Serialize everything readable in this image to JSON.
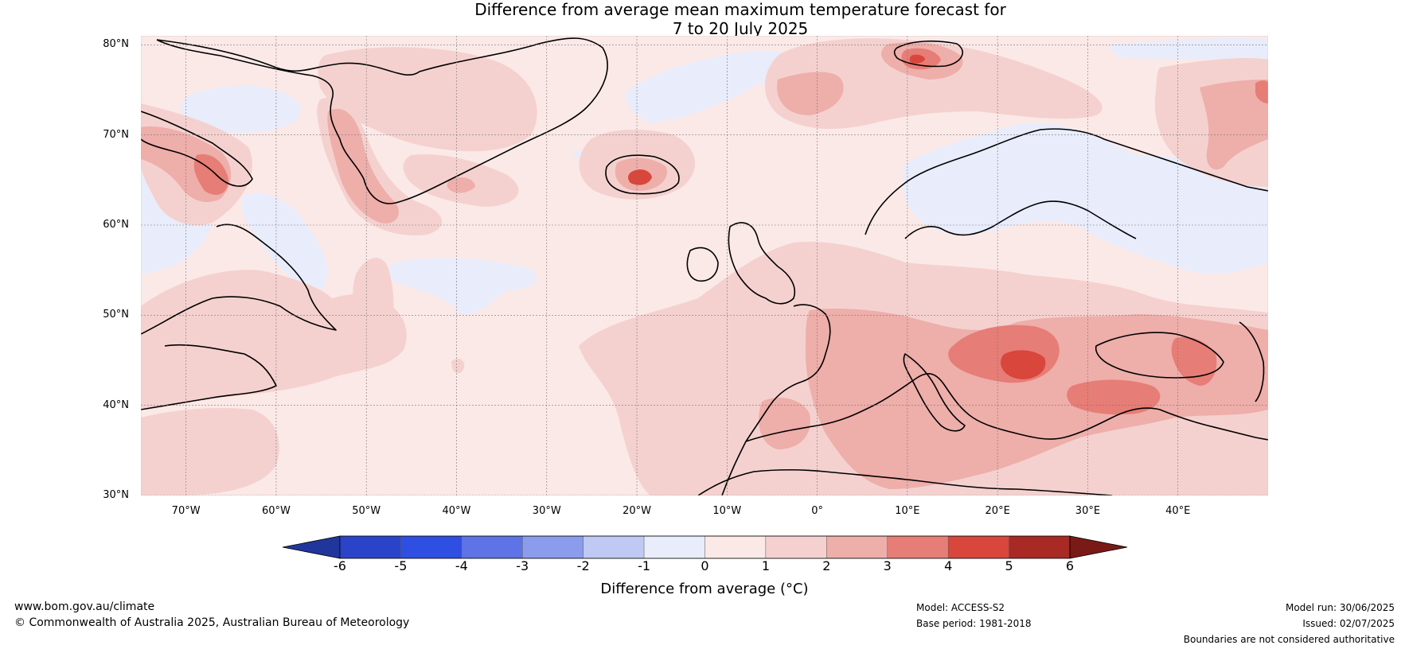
{
  "title": {
    "line1": "Difference from average mean maximum temperature forecast for",
    "line2": "7 to 20 July 2025"
  },
  "map": {
    "lat_labels": [
      "80°N",
      "70°N",
      "60°N",
      "50°N",
      "40°N",
      "30°N"
    ],
    "lon_labels": [
      "70°W",
      "60°W",
      "50°W",
      "40°W",
      "30°W",
      "20°W",
      "10°W",
      "0°",
      "10°E",
      "20°E",
      "30°E",
      "40°E"
    ],
    "lat_values": [
      80,
      70,
      60,
      50,
      40,
      30
    ],
    "lon_values": [
      -70,
      -60,
      -50,
      -40,
      -30,
      -20,
      -10,
      0,
      10,
      20,
      30,
      40
    ],
    "extent": {
      "lon_min": -75,
      "lon_max": 50,
      "lat_min": 30,
      "lat_max": 81
    },
    "background_color": "#fbe9e7"
  },
  "colorbar": {
    "ticks": [
      "-6",
      "-5",
      "-4",
      "-3",
      "-2",
      "-1",
      "0",
      "1",
      "2",
      "3",
      "4",
      "5",
      "6"
    ],
    "colors": [
      "#21369d",
      "#2b43c9",
      "#2f4fe2",
      "#5d73e6",
      "#8a9ceb",
      "#c0c9f3",
      "#e9ecfb",
      "#fbe9e7",
      "#f4d1cf",
      "#eeaeaa",
      "#e67d76",
      "#d8463c",
      "#a92925",
      "#7a1a16"
    ],
    "label": "Difference from average (°C)"
  },
  "footer": {
    "website": "www.bom.gov.au/climate",
    "copyright": "© Commonwealth of Australia 2025, Australian Bureau of Meteorology",
    "model": "Model: ACCESS-S2",
    "base_period": "Base period: 1981-2018",
    "model_run": "Model run: 30/06/2025",
    "issued": "Issued: 02/07/2025",
    "disclaimer": "Boundaries are not considered authoritative"
  }
}
